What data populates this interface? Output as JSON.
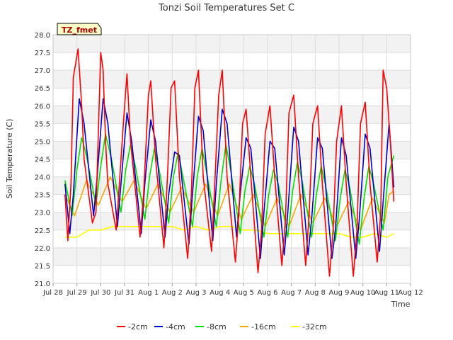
{
  "chart_data": {
    "type": "line",
    "title": "Tonzi Soil Temperatures Set C",
    "xlabel": "Time",
    "ylabel": "Soil Temperature (C)",
    "site_label": "TZ_fmet",
    "ylim": [
      21.0,
      28.0
    ],
    "yticks": [
      "21.0",
      "21.5",
      "22.0",
      "22.5",
      "23.0",
      "23.5",
      "24.0",
      "24.5",
      "25.0",
      "25.5",
      "26.0",
      "26.5",
      "27.0",
      "27.5",
      "28.0"
    ],
    "xlim_days": [
      0,
      15
    ],
    "xtick_labels": [
      "Jul 28",
      "Jul 29",
      "Jul 30",
      "Jul 31",
      "Aug 1",
      "Aug 2",
      "Aug 3",
      "Aug 4",
      "Aug 5",
      "Aug 6",
      "Aug 7",
      "Aug 8",
      "Aug 9",
      "Aug 10",
      "Aug 11",
      "Aug 12"
    ],
    "grid": true,
    "legend_position": "bottom",
    "series": [
      {
        "name": "-2cm",
        "color": "#ff0000",
        "x_days": [
          0.5,
          0.62,
          0.75,
          0.85,
          1.05,
          1.2,
          1.3,
          1.65,
          1.8,
          2.0,
          2.1,
          2.2,
          2.3,
          2.65,
          2.8,
          2.95,
          3.1,
          3.25,
          3.65,
          3.8,
          4.0,
          4.1,
          4.3,
          4.65,
          4.8,
          4.95,
          5.1,
          5.3,
          5.65,
          5.8,
          5.95,
          6.1,
          6.3,
          6.65,
          6.8,
          6.95,
          7.1,
          7.3,
          7.65,
          7.8,
          7.95,
          8.1,
          8.3,
          8.6,
          8.75,
          8.9,
          9.1,
          9.3,
          9.6,
          9.75,
          9.9,
          10.1,
          10.3,
          10.6,
          10.75,
          10.9,
          11.1,
          11.3,
          11.6,
          11.75,
          11.9,
          12.1,
          12.3,
          12.6,
          12.75,
          12.9,
          13.1,
          13.3,
          13.6,
          13.75,
          13.85,
          14.0,
          14.15,
          14.3
        ],
        "values": [
          23.5,
          22.2,
          23.8,
          26.8,
          27.6,
          26.0,
          24.5,
          22.7,
          23.0,
          27.5,
          27.0,
          25.0,
          23.8,
          22.5,
          24.0,
          25.5,
          26.9,
          25.0,
          22.3,
          23.5,
          26.3,
          26.7,
          24.5,
          22.0,
          24.0,
          26.5,
          26.7,
          24.0,
          21.7,
          23.5,
          26.5,
          27.0,
          24.0,
          21.9,
          24.0,
          26.3,
          27.0,
          24.0,
          21.6,
          23.0,
          25.5,
          25.9,
          24.0,
          21.3,
          22.5,
          25.2,
          26.0,
          24.0,
          21.5,
          22.8,
          25.8,
          26.3,
          24.0,
          21.5,
          23.0,
          25.5,
          26.0,
          23.8,
          21.2,
          22.5,
          25.0,
          26.0,
          23.8,
          21.2,
          22.5,
          25.5,
          26.1,
          23.8,
          21.6,
          23.0,
          27.0,
          26.5,
          25.0,
          23.3
        ]
      },
      {
        "name": "-4cm",
        "color": "#0000cc",
        "x_days": [
          0.5,
          0.7,
          0.85,
          1.1,
          1.3,
          1.7,
          1.85,
          2.1,
          2.3,
          2.7,
          2.85,
          3.1,
          3.3,
          3.7,
          3.85,
          4.1,
          4.3,
          4.7,
          4.85,
          5.1,
          5.3,
          5.7,
          5.85,
          6.1,
          6.3,
          6.7,
          6.85,
          7.1,
          7.3,
          7.7,
          7.85,
          8.1,
          8.3,
          8.7,
          8.85,
          9.1,
          9.3,
          9.7,
          9.85,
          10.1,
          10.3,
          10.7,
          10.85,
          11.1,
          11.3,
          11.7,
          11.85,
          12.1,
          12.3,
          12.7,
          12.85,
          13.1,
          13.3,
          13.7,
          13.85,
          14.1,
          14.3
        ],
        "values": [
          23.8,
          22.4,
          23.5,
          26.2,
          25.5,
          22.9,
          24.0,
          26.2,
          25.5,
          22.6,
          23.8,
          25.8,
          25.0,
          22.4,
          23.8,
          25.6,
          25.0,
          22.3,
          23.5,
          24.7,
          24.6,
          22.1,
          23.5,
          25.7,
          25.3,
          22.2,
          23.8,
          25.9,
          25.5,
          22.3,
          23.5,
          25.1,
          24.8,
          21.7,
          23.0,
          25.0,
          24.8,
          21.8,
          23.0,
          25.4,
          25.0,
          21.8,
          22.8,
          25.1,
          24.8,
          21.7,
          22.5,
          25.1,
          24.6,
          21.7,
          22.8,
          25.2,
          24.8,
          21.9,
          23.3,
          25.5,
          23.7
        ]
      },
      {
        "name": "-8cm",
        "color": "#00e000",
        "x_days": [
          0.5,
          0.8,
          1.0,
          1.2,
          1.4,
          1.8,
          2.0,
          2.2,
          2.45,
          2.85,
          3.05,
          3.25,
          3.45,
          3.85,
          4.05,
          4.25,
          4.45,
          4.85,
          5.05,
          5.25,
          5.45,
          5.85,
          6.05,
          6.25,
          6.45,
          6.85,
          7.05,
          7.25,
          7.45,
          7.85,
          8.05,
          8.25,
          8.45,
          8.85,
          9.05,
          9.25,
          9.45,
          9.85,
          10.05,
          10.25,
          10.45,
          10.85,
          11.05,
          11.25,
          11.45,
          11.85,
          12.05,
          12.25,
          12.45,
          12.85,
          13.05,
          13.25,
          13.45,
          13.85,
          14.05,
          14.3
        ],
        "values": [
          23.9,
          22.9,
          24.2,
          25.1,
          24.6,
          23.2,
          24.3,
          25.2,
          24.5,
          23.0,
          24.2,
          24.9,
          24.3,
          22.8,
          24.0,
          24.8,
          24.2,
          22.7,
          24.0,
          24.7,
          24.0,
          22.6,
          24.0,
          24.8,
          24.1,
          22.6,
          23.9,
          24.9,
          24.2,
          22.4,
          23.6,
          24.3,
          23.8,
          22.3,
          23.5,
          24.2,
          23.8,
          22.3,
          23.6,
          24.4,
          23.9,
          22.3,
          23.5,
          24.3,
          23.7,
          22.2,
          23.4,
          24.2,
          23.7,
          22.1,
          23.4,
          24.3,
          23.8,
          22.5,
          24.0,
          24.6
        ]
      },
      {
        "name": "-16cm",
        "color": "#ffa500",
        "x_days": [
          0.5,
          0.9,
          1.4,
          1.9,
          2.4,
          2.9,
          3.4,
          3.9,
          4.4,
          4.9,
          5.4,
          5.9,
          6.4,
          6.9,
          7.4,
          7.9,
          8.4,
          8.9,
          9.4,
          9.9,
          10.4,
          10.9,
          11.4,
          11.9,
          12.4,
          12.9,
          13.4,
          13.9,
          14.1,
          14.3
        ],
        "values": [
          23.5,
          22.9,
          23.9,
          23.2,
          24.0,
          23.3,
          23.9,
          23.1,
          23.8,
          23.0,
          23.7,
          23.0,
          23.8,
          22.9,
          23.8,
          22.8,
          23.5,
          22.6,
          23.4,
          22.6,
          23.5,
          22.7,
          23.4,
          22.6,
          23.3,
          22.5,
          23.4,
          22.7,
          23.5,
          23.6
        ]
      },
      {
        "name": "-32cm",
        "color": "#ffff00",
        "x_days": [
          0.5,
          1.0,
          1.5,
          2.0,
          2.5,
          3.0,
          3.5,
          4.0,
          4.5,
          5.0,
          5.5,
          6.0,
          6.5,
          7.0,
          7.5,
          8.0,
          8.5,
          9.0,
          9.5,
          10.0,
          10.5,
          11.0,
          11.5,
          12.0,
          12.5,
          13.0,
          13.5,
          14.0,
          14.3
        ],
        "values": [
          22.3,
          22.3,
          22.5,
          22.5,
          22.6,
          22.6,
          22.6,
          22.6,
          22.6,
          22.6,
          22.5,
          22.6,
          22.5,
          22.6,
          22.6,
          22.5,
          22.5,
          22.4,
          22.4,
          22.4,
          22.4,
          22.4,
          22.4,
          22.4,
          22.3,
          22.3,
          22.4,
          22.3,
          22.4
        ]
      }
    ]
  }
}
